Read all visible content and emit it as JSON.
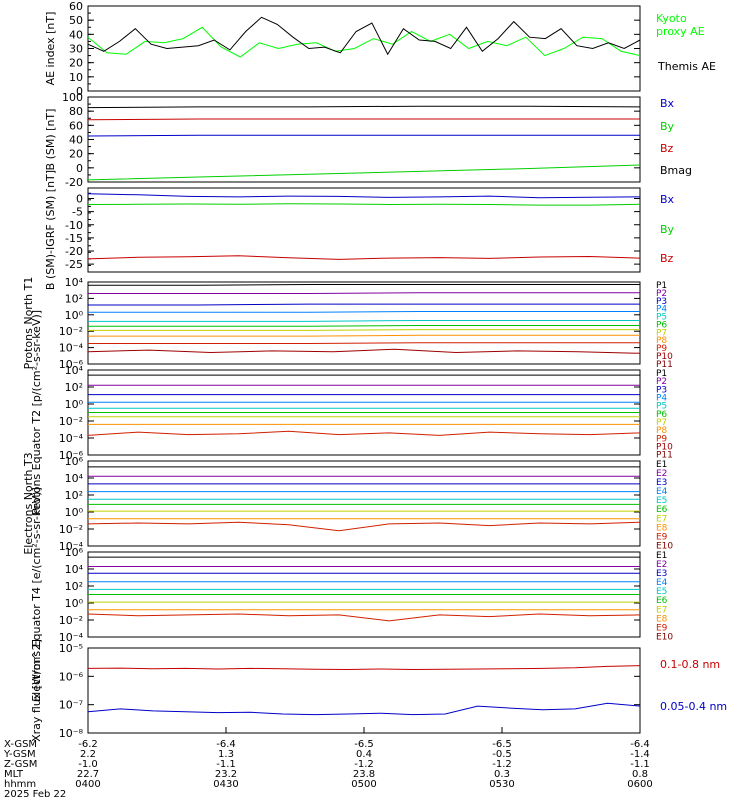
{
  "chart_data": [
    {
      "type": "line",
      "ylabel": "AE index [nT]",
      "ylim": [
        0,
        60
      ],
      "yticks": [
        {
          "v": 0,
          "t": "0"
        },
        {
          "v": 10,
          "t": "10"
        },
        {
          "v": 20,
          "t": "20"
        },
        {
          "v": 30,
          "t": "30"
        },
        {
          "v": 40,
          "t": "40"
        },
        {
          "v": 50,
          "t": "50"
        },
        {
          "v": 60,
          "t": "60"
        }
      ],
      "series": [
        {
          "name": "Kyoto proxy AE",
          "color": "#00ff00",
          "y": [
            38,
            27,
            26,
            35,
            34,
            37,
            45,
            31,
            24,
            34,
            30,
            33,
            34,
            28,
            30,
            37,
            33,
            42,
            35,
            40,
            30,
            35,
            32,
            38,
            25,
            30,
            38,
            37,
            28,
            25
          ]
        },
        {
          "name": "Themis AE",
          "color": "#000000",
          "y": [
            33,
            28,
            35,
            44,
            33,
            30,
            31,
            32,
            36,
            29,
            42,
            52,
            47,
            38,
            30,
            31,
            27,
            42,
            48,
            26,
            44,
            36,
            35,
            30,
            45,
            28,
            37,
            49,
            38,
            37,
            44,
            32,
            30,
            34,
            30,
            36
          ]
        }
      ]
    },
    {
      "type": "line",
      "ylabel": "B (SM) [nT]",
      "ylim": [
        -20,
        100
      ],
      "yticks": [
        {
          "v": -20,
          "t": "-20"
        },
        {
          "v": 0,
          "t": "0"
        },
        {
          "v": 20,
          "t": "20"
        },
        {
          "v": 40,
          "t": "40"
        },
        {
          "v": 60,
          "t": "60"
        },
        {
          "v": 80,
          "t": "80"
        },
        {
          "v": 100,
          "t": "100"
        }
      ],
      "series": [
        {
          "name": "Bx",
          "color": "#0000c8",
          "y": [
            45,
            46,
            46,
            46,
            46,
            46
          ]
        },
        {
          "name": "By",
          "color": "#00d000",
          "y": [
            -17,
            -13,
            -9,
            -5,
            -1,
            4
          ]
        },
        {
          "name": "Bz",
          "color": "#c80000",
          "y": [
            68,
            69,
            69,
            69,
            69,
            69
          ]
        },
        {
          "name": "Bmag",
          "color": "#000000",
          "y": [
            85,
            86,
            86,
            87,
            87,
            86
          ]
        }
      ]
    },
    {
      "type": "line",
      "ylabel": "B (SM)-IGRF (SM) [nT]",
      "ylim": [
        -28,
        4
      ],
      "yticks": [
        {
          "v": -25,
          "t": "-25"
        },
        {
          "v": -20,
          "t": "-20"
        },
        {
          "v": -15,
          "t": "-15"
        },
        {
          "v": -10,
          "t": "-10"
        },
        {
          "v": -5,
          "t": "-5"
        },
        {
          "v": 0,
          "t": "0"
        }
      ],
      "series": [
        {
          "name": "Bx",
          "color": "#0000c8",
          "y": [
            1.8,
            1.4,
            0.8,
            0.6,
            0.9,
            0.8,
            0.4,
            0.6,
            0.9,
            0.3,
            0.5,
            0.6
          ]
        },
        {
          "name": "By",
          "color": "#00d000",
          "y": [
            -2.3,
            -2.2,
            -2.1,
            -2.2,
            -2.0,
            -2.1,
            -2.3,
            -2.2,
            -2.3,
            -2.5,
            -2.5,
            -2.2
          ]
        },
        {
          "name": "Bz",
          "color": "#c80000",
          "y": [
            -23,
            -22.4,
            -22.2,
            -21.8,
            -22.6,
            -23.2,
            -22.7,
            -22.5,
            -22.8,
            -22.3,
            -22.1,
            -22.7
          ]
        }
      ]
    },
    {
      "type": "line",
      "log": true,
      "ylabel": "Protons North T1",
      "ylim": [
        -6,
        4
      ],
      "yticks": [
        {
          "v": -6,
          "t": "10⁻⁶"
        },
        {
          "v": -4,
          "t": "10⁻⁴"
        },
        {
          "v": -2,
          "t": "10⁻²"
        },
        {
          "v": 0,
          "t": "10⁰"
        },
        {
          "v": 2,
          "t": "10²"
        },
        {
          "v": 4,
          "t": "10⁴"
        }
      ],
      "series": [
        {
          "name": "P1",
          "color": "#000000",
          "log10": [
            3.6,
            3.6,
            3.7,
            3.7,
            3.7,
            3.7
          ]
        },
        {
          "name": "P2",
          "color": "#8000a0",
          "log10": [
            2.6,
            2.6,
            2.6,
            2.7,
            2.7,
            2.7
          ]
        },
        {
          "name": "P3",
          "color": "#0000c8",
          "log10": [
            1.2,
            1.2,
            1.3,
            1.3,
            1.3,
            1.3
          ]
        },
        {
          "name": "P4",
          "color": "#0080ff",
          "log10": [
            0.3,
            0.3,
            0.3,
            0.4,
            0.4,
            0.4
          ]
        },
        {
          "name": "P5",
          "color": "#00c8c8",
          "log10": [
            -0.8,
            -0.8,
            -0.8,
            -0.7,
            -0.7,
            -0.7
          ]
        },
        {
          "name": "P6",
          "color": "#00c000",
          "log10": [
            -1.4,
            -1.4,
            -1.4,
            -1.3,
            -1.3,
            -1.3
          ]
        },
        {
          "name": "P7",
          "color": "#c0d000",
          "log10": [
            -1.9,
            -1.9,
            -1.9,
            -1.8,
            -1.8,
            -1.8
          ]
        },
        {
          "name": "P8",
          "color": "#ff9000",
          "log10": [
            -2.6,
            -2.6,
            -2.6,
            -2.5,
            -2.5,
            -2.5
          ]
        },
        {
          "name": "P9",
          "color": "#d02000",
          "log10": [
            -3.5,
            -3.5,
            -3.5,
            -3.4,
            -3.4,
            -3.4
          ]
        },
        {
          "name": "P10",
          "color": "#a00000",
          "log10": [
            -4.5,
            -4.3,
            -4.6,
            -4.4,
            -4.5,
            -4.2,
            -4.6,
            -4.4,
            -4.5,
            -4.7
          ]
        },
        {
          "name": "P11",
          "color": "#800000",
          "log10": []
        }
      ]
    },
    {
      "type": "line",
      "log": true,
      "ylabel": "Protons Equator T2 [p/(cm²-s-sr-keV)]",
      "ylim": [
        -6,
        4
      ],
      "yticks": [
        {
          "v": -6,
          "t": "10⁻⁶"
        },
        {
          "v": -4,
          "t": "10⁻⁴"
        },
        {
          "v": -2,
          "t": "10⁻²"
        },
        {
          "v": 0,
          "t": "10⁰"
        },
        {
          "v": 2,
          "t": "10²"
        },
        {
          "v": 4,
          "t": "10⁴"
        }
      ],
      "series": [
        {
          "name": "P1",
          "color": "#000000",
          "log10": [
            3.4,
            3.4,
            3.4,
            3.4,
            3.4,
            3.4
          ]
        },
        {
          "name": "P2",
          "color": "#8000a0",
          "log10": [
            2.2,
            2.2,
            2.2,
            2.2,
            2.2,
            2.2
          ]
        },
        {
          "name": "P3",
          "color": "#0000c8",
          "log10": [
            1.1,
            1.1,
            1.1,
            1.1,
            1.1,
            1.1
          ]
        },
        {
          "name": "P4",
          "color": "#0080ff",
          "log10": [
            0.2,
            0.2,
            0.2,
            0.2,
            0.2,
            0.2
          ]
        },
        {
          "name": "P5",
          "color": "#00c8c8",
          "log10": [
            -0.5,
            -0.5,
            -0.5,
            -0.5,
            -0.5,
            -0.5
          ]
        },
        {
          "name": "P6",
          "color": "#00c000",
          "log10": [
            -1.0,
            -1.0,
            -1.0,
            -1.0,
            -1.0,
            -1.0
          ]
        },
        {
          "name": "P7",
          "color": "#c0d000",
          "log10": [
            -1.5,
            -1.5,
            -1.5,
            -1.5,
            -1.5,
            -1.5
          ]
        },
        {
          "name": "P8",
          "color": "#ff9000",
          "log10": [
            -2.4,
            -2.4,
            -2.4,
            -2.4,
            -2.4,
            -2.4
          ]
        },
        {
          "name": "P9",
          "color": "#d02000",
          "log10": [
            -3.7,
            -3.3,
            -3.6,
            -3.5,
            -3.2,
            -3.6,
            -3.4,
            -3.7,
            -3.3,
            -3.5,
            -3.6,
            -3.4
          ]
        },
        {
          "name": "P10",
          "color": "#a00000",
          "log10": []
        },
        {
          "name": "P11",
          "color": "#800000",
          "log10": []
        }
      ]
    },
    {
      "type": "line",
      "log": true,
      "ylabel": "Electrons North T3",
      "ylim": [
        -4,
        6
      ],
      "yticks": [
        {
          "v": -4,
          "t": "10⁻⁴"
        },
        {
          "v": -2,
          "t": "10⁻²"
        },
        {
          "v": 0,
          "t": "10⁰"
        },
        {
          "v": 2,
          "t": "10²"
        },
        {
          "v": 4,
          "t": "10⁴"
        },
        {
          "v": 6,
          "t": "10⁶"
        }
      ],
      "series": [
        {
          "name": "E1",
          "color": "#000000",
          "log10": [
            5.3,
            5.3,
            5.3,
            5.3,
            5.3,
            5.3
          ]
        },
        {
          "name": "E2",
          "color": "#8000a0",
          "log10": [
            4.2,
            4.2,
            4.2,
            4.2,
            4.2,
            4.2
          ]
        },
        {
          "name": "E3",
          "color": "#0000c8",
          "log10": [
            3.3,
            3.3,
            3.3,
            3.3,
            3.3,
            3.3
          ]
        },
        {
          "name": "E4",
          "color": "#0080ff",
          "log10": [
            2.4,
            2.4,
            2.4,
            2.4,
            2.4,
            2.4
          ]
        },
        {
          "name": "E5",
          "color": "#00c8c8",
          "log10": [
            1.5,
            1.5,
            1.5,
            1.5,
            1.5,
            1.5
          ]
        },
        {
          "name": "E6",
          "color": "#00c000",
          "log10": [
            0.9,
            0.9,
            0.9,
            0.9,
            0.9,
            0.9
          ]
        },
        {
          "name": "E7",
          "color": "#c0d000",
          "log10": [
            0.1,
            0.1,
            0.1,
            0.1,
            0.1,
            0.1
          ]
        },
        {
          "name": "E8",
          "color": "#ff9000",
          "log10": [
            -0.8,
            -0.8,
            -0.8,
            -0.8,
            -0.8,
            -0.8
          ]
        },
        {
          "name": "E9",
          "color": "#d02000",
          "log10": [
            -1.4,
            -1.3,
            -1.4,
            -1.2,
            -1.5,
            -2.2,
            -1.4,
            -1.3,
            -1.6,
            -1.3,
            -1.4,
            -1.2
          ]
        },
        {
          "name": "E10",
          "color": "#800000",
          "log10": []
        }
      ]
    },
    {
      "type": "line",
      "log": true,
      "ylabel": "Electrons Equator T4 [e/(cm²-s-sr-keV)]",
      "ylim": [
        -4,
        6
      ],
      "yticks": [
        {
          "v": -4,
          "t": "10⁻⁴"
        },
        {
          "v": -2,
          "t": "10⁻²"
        },
        {
          "v": 0,
          "t": "10⁰"
        },
        {
          "v": 2,
          "t": "10²"
        },
        {
          "v": 4,
          "t": "10⁴"
        },
        {
          "v": 6,
          "t": "10⁶"
        }
      ],
      "series": [
        {
          "name": "E1",
          "color": "#000000",
          "log10": [
            5.4,
            5.4,
            5.4,
            5.4,
            5.4,
            5.4
          ]
        },
        {
          "name": "E2",
          "color": "#8000a0",
          "log10": [
            4.3,
            4.3,
            4.3,
            4.3,
            4.3,
            4.3
          ]
        },
        {
          "name": "E3",
          "color": "#0000c8",
          "log10": [
            3.5,
            3.5,
            3.5,
            3.5,
            3.5,
            3.5
          ]
        },
        {
          "name": "E4",
          "color": "#0080ff",
          "log10": [
            2.5,
            2.5,
            2.5,
            2.5,
            2.5,
            2.5
          ]
        },
        {
          "name": "E5",
          "color": "#00c8c8",
          "log10": [
            1.6,
            1.6,
            1.6,
            1.6,
            1.6,
            1.6
          ]
        },
        {
          "name": "E6",
          "color": "#00c000",
          "log10": [
            1.0,
            1.0,
            1.0,
            1.0,
            1.0,
            1.0
          ]
        },
        {
          "name": "E7",
          "color": "#c0d000",
          "log10": [
            0.1,
            0.1,
            0.1,
            0.1,
            0.1,
            0.1
          ]
        },
        {
          "name": "E8",
          "color": "#ff9000",
          "log10": [
            -0.8,
            -0.8,
            -0.8,
            -0.8,
            -0.8,
            -0.8
          ]
        },
        {
          "name": "E9",
          "color": "#d02000",
          "log10": [
            -1.3,
            -1.5,
            -1.4,
            -1.3,
            -1.5,
            -1.4,
            -2.1,
            -1.4,
            -1.6,
            -1.3,
            -1.5,
            -1.4
          ]
        },
        {
          "name": "E10",
          "color": "#800000",
          "log10": []
        }
      ]
    },
    {
      "type": "line",
      "log": true,
      "ylabel": "Xray flux [W/m^2]",
      "ylim": [
        -8,
        -5
      ],
      "yticks": [
        {
          "v": -8,
          "t": "10⁻⁸"
        },
        {
          "v": -7,
          "t": "10⁻⁷"
        },
        {
          "v": -6,
          "t": "10⁻⁶"
        },
        {
          "v": -5,
          "t": "10⁻⁵"
        }
      ],
      "series": [
        {
          "name": "0.1-0.8 nm",
          "color": "#c80000",
          "log10": [
            -5.72,
            -5.71,
            -5.73,
            -5.72,
            -5.74,
            -5.72,
            -5.73,
            -5.75,
            -5.76,
            -5.74,
            -5.76,
            -5.75,
            -5.74,
            -5.73,
            -5.72,
            -5.7,
            -5.65,
            -5.62
          ]
        },
        {
          "name": "0.05-0.4 nm",
          "color": "#0000c8",
          "log10": [
            -7.25,
            -7.15,
            -7.22,
            -7.25,
            -7.28,
            -7.27,
            -7.33,
            -7.35,
            -7.33,
            -7.3,
            -7.35,
            -7.33,
            -7.05,
            -7.12,
            -7.18,
            -7.15,
            -6.95,
            -7.05
          ]
        }
      ]
    }
  ],
  "x_axis": {
    "rows": [
      {
        "label": "X-GSM",
        "values": [
          "-6.2",
          "-6.4",
          "-6.5",
          "-6.5",
          "-6.4"
        ]
      },
      {
        "label": "Y-GSM",
        "values": [
          "2.2",
          "1.3",
          "0.4",
          "-0.5",
          "-1.4"
        ]
      },
      {
        "label": "Z-GSM",
        "values": [
          "-1.0",
          "-1.1",
          "-1.2",
          "-1.2",
          "-1.1"
        ]
      },
      {
        "label": "MLT",
        "values": [
          "22.7",
          "23.2",
          "23.8",
          "0.3",
          "0.8"
        ]
      },
      {
        "label": "hhmm",
        "values": [
          "0400",
          "0430",
          "0500",
          "0530",
          "0600"
        ]
      }
    ],
    "date": "2025 Feb 22"
  },
  "legend_colors": {
    "kyoto": "#00ff00",
    "themis": "#000000"
  }
}
